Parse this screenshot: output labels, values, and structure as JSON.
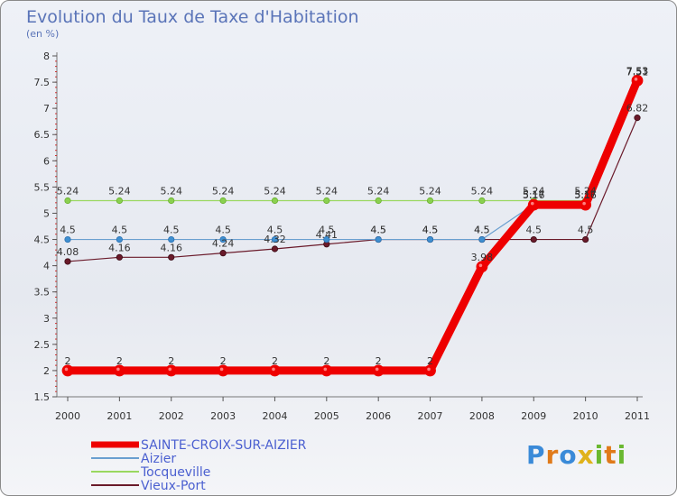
{
  "chart_data": {
    "type": "line",
    "title": "Evolution du Taux de Taxe d'Habitation",
    "ylabel": "(en %)",
    "ylim": [
      1.5,
      8
    ],
    "yticks": [
      "1.5",
      "2",
      "2.5",
      "3",
      "3.5",
      "4",
      "4.5",
      "5",
      "5.5",
      "6",
      "6.5",
      "7",
      "7.5",
      "8"
    ],
    "categories": [
      "2000",
      "2001",
      "2002",
      "2003",
      "2004",
      "2005",
      "2006",
      "2007",
      "2008",
      "2009",
      "2010",
      "2011"
    ],
    "series": [
      {
        "name": "Vieux-Port",
        "color": "#6a1a2a",
        "values": [
          4.08,
          4.16,
          4.16,
          4.24,
          4.32,
          4.41,
          4.5,
          4.5,
          4.5,
          4.5,
          4.5,
          6.82
        ],
        "labels": [
          "4.08",
          "4.16",
          "4.16",
          "4.24",
          "4.32",
          "4.41",
          "4.5",
          "4.5",
          "4.5",
          "4.5",
          "4.5",
          "6.82"
        ]
      },
      {
        "name": "Aizier",
        "color": "#6a9fd0",
        "values": [
          4.5,
          4.5,
          4.5,
          4.5,
          4.5,
          4.5,
          4.5,
          4.5,
          4.5,
          5.17,
          5.17,
          7.51
        ],
        "labels": [
          "4.5",
          "4.5",
          "4.5",
          "4.5",
          "4.5",
          "4.5",
          "4.5",
          "4.5",
          "4.5",
          "5.17",
          "5.17",
          "7.51"
        ]
      },
      {
        "name": "Tocqueville",
        "color": "#9ad860",
        "values": [
          5.24,
          5.24,
          5.24,
          5.24,
          5.24,
          5.24,
          5.24,
          5.24,
          5.24,
          5.24,
          5.24,
          7.53
        ],
        "labels": [
          "5.24",
          "5.24",
          "5.24",
          "5.24",
          "5.24",
          "5.24",
          "5.24",
          "5.24",
          "5.24",
          "5.24",
          "5.24",
          "7.53"
        ]
      },
      {
        "name": "SAINTE-CROIX-SUR-AIZIER",
        "color": "#ee0000",
        "values": [
          2,
          2,
          2,
          2,
          2,
          2,
          2,
          2,
          3.98,
          5.16,
          5.16,
          7.53
        ],
        "labels": [
          "2",
          "2",
          "2",
          "2",
          "2",
          "2",
          "2",
          "2",
          "3.98",
          "5.16",
          "5.16",
          "7.53"
        ]
      }
    ],
    "legend": [
      "SAINTE-CROIX-SUR-AIZIER",
      "Aizier",
      "Tocqueville",
      "Vieux-Port"
    ],
    "grid": false
  },
  "logo": {
    "letters": [
      "P",
      "r",
      "o",
      "x",
      "i",
      "t",
      "i"
    ],
    "colors": [
      "#3a8ad8",
      "#e07a1a",
      "#3a8ad8",
      "#e0b21a",
      "#6ab830",
      "#e07a1a",
      "#6ab830"
    ]
  }
}
